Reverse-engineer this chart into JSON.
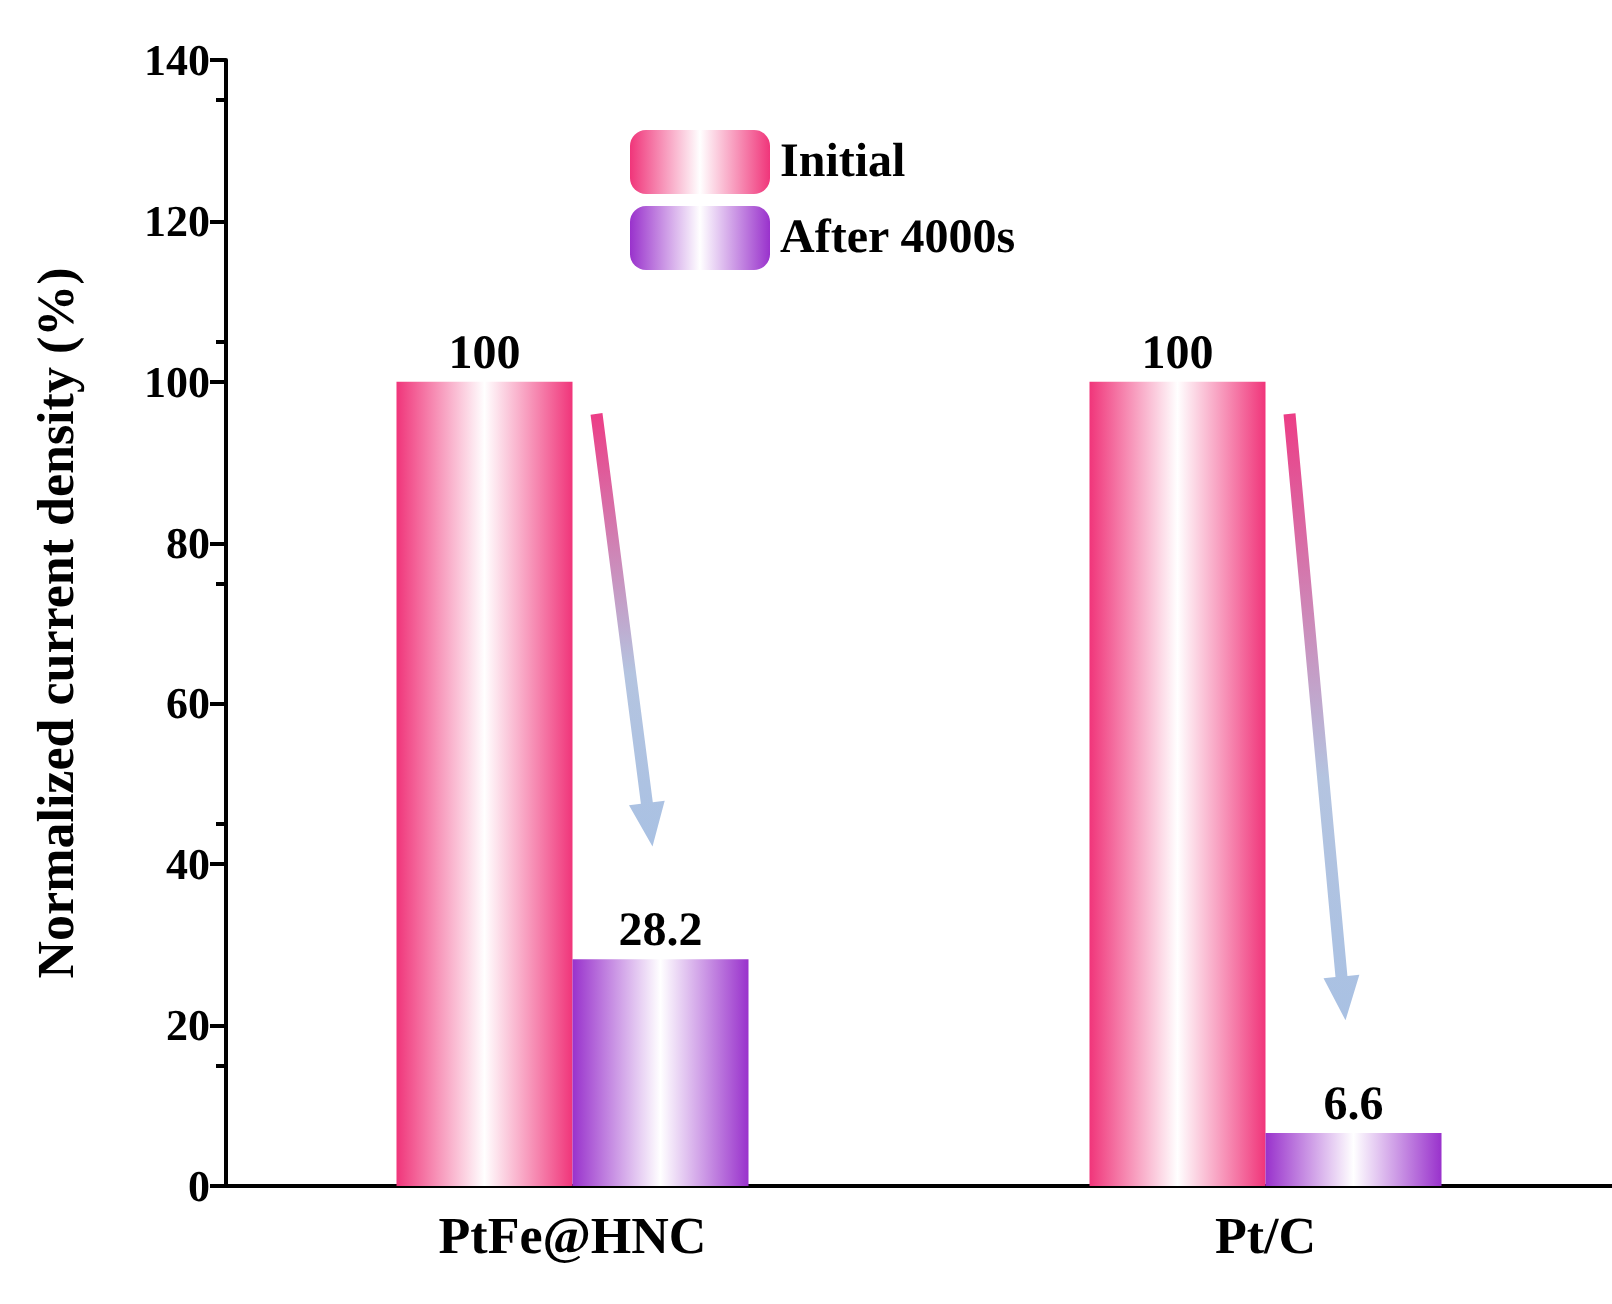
{
  "chart_data": {
    "type": "bar",
    "ylabel": "Normalized current density (%)",
    "categories": [
      "PtFe@HNC",
      "Pt/C"
    ],
    "series": [
      {
        "name": "Initial",
        "color": "#f0357a",
        "values": [
          100,
          100
        ]
      },
      {
        "name": "After 4000s",
        "color": "#9932cc",
        "values": [
          28.2,
          6.6
        ]
      }
    ],
    "ylim": [
      0,
      140
    ],
    "yticks": [
      0,
      20,
      40,
      60,
      80,
      100,
      120,
      140
    ],
    "grid": false,
    "legend": "top",
    "data_labels": true
  }
}
